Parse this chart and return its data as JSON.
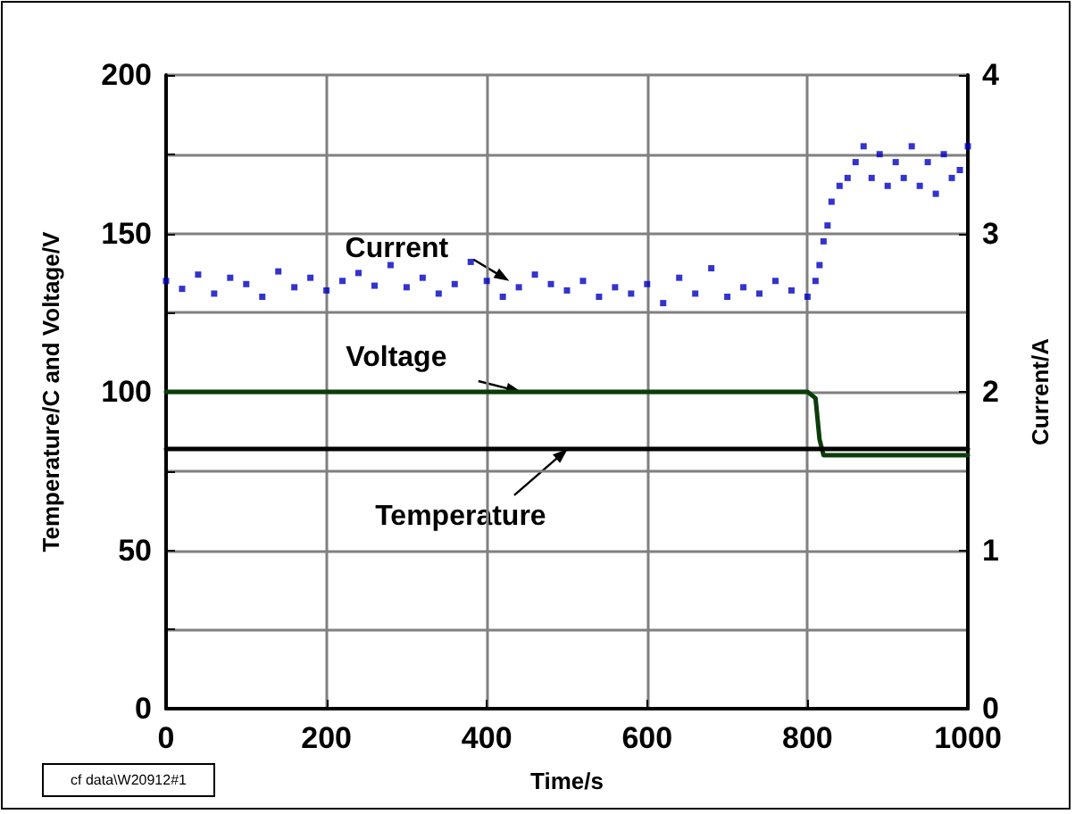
{
  "chart_data": {
    "type": "line",
    "xlabel": "Time/s",
    "ylabel": "Temperature/C and Voltage/V",
    "y2label": "Current/A",
    "xlim": [
      0,
      1000
    ],
    "xticks": [
      0,
      200,
      400,
      600,
      800,
      1000
    ],
    "ylim": [
      0,
      200
    ],
    "yticks": [
      0,
      {
        "value": 25,
        "label": null
      },
      50,
      {
        "value": 75,
        "label": null
      },
      100,
      {
        "value": 125,
        "label": null
      },
      150,
      {
        "value": 175,
        "label": null
      },
      200
    ],
    "y2lim": [
      0,
      4
    ],
    "y2ticks": [
      0,
      1,
      2,
      3,
      4
    ],
    "grid": true,
    "marker": "none",
    "line_style": "solid",
    "series": [
      {
        "type": "scatter",
        "axis": "y2",
        "marker": "square",
        "color": "#0000c0",
        "x": [
          0,
          20,
          40,
          60,
          80,
          100,
          120,
          140,
          160,
          180,
          200,
          220,
          240,
          260,
          280,
          300,
          320,
          340,
          360,
          380,
          400,
          420,
          440,
          460,
          480,
          500,
          520,
          540,
          560,
          580,
          600,
          620,
          640,
          660,
          680,
          700,
          720,
          740,
          760,
          780,
          800,
          810,
          815,
          820,
          825,
          830,
          840,
          850,
          860,
          870,
          880,
          890,
          900,
          910,
          920,
          930,
          940,
          950,
          960,
          970,
          980,
          990,
          1000
        ],
        "values": [
          2.7,
          2.65,
          2.74,
          2.62,
          2.72,
          2.68,
          2.6,
          2.76,
          2.66,
          2.72,
          2.64,
          2.7,
          2.75,
          2.67,
          2.8,
          2.66,
          2.72,
          2.62,
          2.68,
          2.82,
          2.7,
          2.6,
          2.66,
          2.74,
          2.68,
          2.64,
          2.7,
          2.6,
          2.66,
          2.62,
          2.68,
          2.56,
          2.72,
          2.62,
          2.78,
          2.6,
          2.66,
          2.62,
          2.7,
          2.64,
          2.6,
          2.7,
          2.8,
          2.95,
          3.05,
          3.2,
          3.3,
          3.35,
          3.45,
          3.55,
          3.35,
          3.5,
          3.3,
          3.45,
          3.35,
          3.55,
          3.3,
          3.45,
          3.25,
          3.5,
          3.35,
          3.4,
          3.55
        ]
      },
      {
        "color": "#0b3d0b",
        "x": [
          0,
          800,
          810,
          815,
          820,
          1000
        ],
        "values": [
          100,
          100,
          98,
          85,
          80,
          80
        ]
      },
      {
        "color": "#000000",
        "x": [
          0,
          1000
        ],
        "values": [
          82,
          82
        ]
      }
    ],
    "annotations": [
      {
        "text": "Current",
        "x": 428,
        "y": 135
      },
      {
        "text": "Voltage",
        "x": 443,
        "y": 100
      },
      {
        "text": "Temperature",
        "x": 501,
        "y": 82
      },
      "cf data\\W20912#1"
    ]
  }
}
